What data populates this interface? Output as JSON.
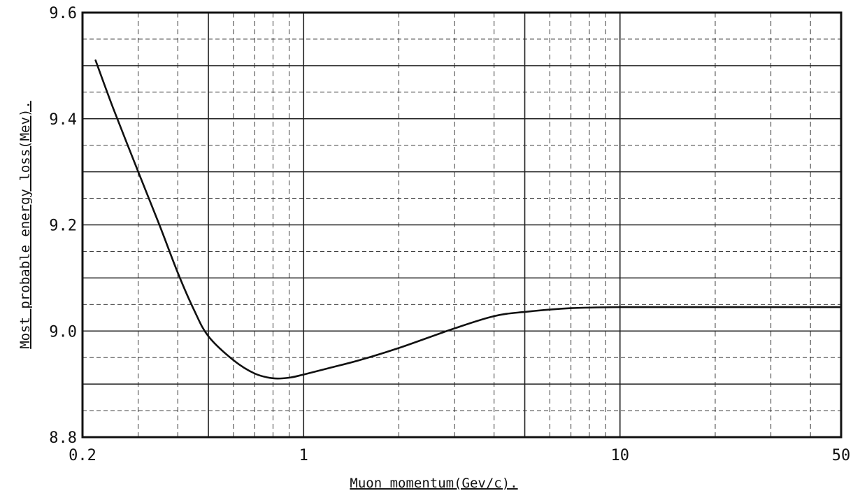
{
  "chart_data": {
    "type": "line",
    "title": "",
    "xlabel": "Muon momentum(Gev/c).",
    "ylabel": "Most probable energy loss(Mev).",
    "xscale": "log",
    "xlim": [
      0.2,
      50
    ],
    "ylim": [
      8.8,
      9.6
    ],
    "grid": true,
    "legend": "none",
    "x_ticks": [
      {
        "value": 0.2,
        "label": "0.2"
      },
      {
        "value": 1,
        "label": "1"
      },
      {
        "value": 10,
        "label": "10"
      },
      {
        "value": 50,
        "label": "50"
      }
    ],
    "y_ticks": [
      {
        "value": 8.8,
        "label": "8.8"
      },
      {
        "value": 9.0,
        "label": "9.0"
      },
      {
        "value": 9.2,
        "label": "9.2"
      },
      {
        "value": 9.4,
        "label": "9.4"
      },
      {
        "value": 9.6,
        "label": "9.6"
      }
    ],
    "series": [
      {
        "color": "#111111",
        "x": [
          0.22,
          0.25,
          0.3,
          0.35,
          0.4,
          0.45,
          0.5,
          0.6,
          0.7,
          0.8,
          0.9,
          1.0,
          1.2,
          1.5,
          2.0,
          3.0,
          4.0,
          5.0,
          7.0,
          10,
          20,
          30,
          50
        ],
        "y": [
          9.51,
          9.42,
          9.3,
          9.2,
          9.11,
          9.04,
          8.99,
          8.945,
          8.92,
          8.911,
          8.912,
          8.918,
          8.93,
          8.945,
          8.968,
          9.005,
          9.028,
          9.036,
          9.043,
          9.045,
          9.045,
          9.045,
          9.045
        ]
      }
    ]
  }
}
